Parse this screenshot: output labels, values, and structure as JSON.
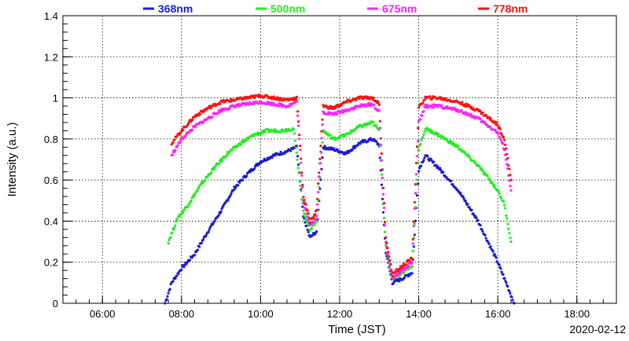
{
  "chart_data": {
    "type": "scatter",
    "xlabel": "Time (JST)",
    "ylabel": "Intensity (a.u.)",
    "date_label": "2020-02-12",
    "x_ticks": [
      "06:00",
      "08:00",
      "10:00",
      "12:00",
      "14:00",
      "16:00",
      "18:00"
    ],
    "y_ticks": [
      "0",
      "0.2",
      "0.4",
      "0.6",
      "0.8",
      "1",
      "1.2",
      "1.4"
    ],
    "xlim": [
      "05:00",
      "19:00"
    ],
    "ylim": [
      0,
      1.4
    ],
    "grid": true,
    "legend_position": "top",
    "series": [
      {
        "name": "368nm",
        "color": "#1a1ad6",
        "points": [
          [
            "07:35",
            0.0
          ],
          [
            "07:45",
            0.1
          ],
          [
            "08:00",
            0.17
          ],
          [
            "08:20",
            0.24
          ],
          [
            "08:40",
            0.35
          ],
          [
            "09:00",
            0.45
          ],
          [
            "09:20",
            0.56
          ],
          [
            "09:40",
            0.63
          ],
          [
            "10:00",
            0.69
          ],
          [
            "10:20",
            0.72
          ],
          [
            "10:40",
            0.74
          ],
          [
            "10:55",
            0.76
          ],
          [
            "11:05",
            0.42
          ],
          [
            "11:15",
            0.32
          ],
          [
            "11:25",
            0.35
          ],
          [
            "11:35",
            0.76
          ],
          [
            "11:50",
            0.75
          ],
          [
            "12:10",
            0.73
          ],
          [
            "12:30",
            0.78
          ],
          [
            "12:50",
            0.8
          ],
          [
            "13:00",
            0.77
          ],
          [
            "13:10",
            0.25
          ],
          [
            "13:20",
            0.1
          ],
          [
            "13:35",
            0.12
          ],
          [
            "13:50",
            0.15
          ],
          [
            "14:00",
            0.65
          ],
          [
            "14:10",
            0.72
          ],
          [
            "14:30",
            0.66
          ],
          [
            "15:00",
            0.55
          ],
          [
            "15:30",
            0.4
          ],
          [
            "16:00",
            0.2
          ],
          [
            "16:15",
            0.08
          ],
          [
            "16:25",
            0.0
          ]
        ]
      },
      {
        "name": "500nm",
        "color": "#22ee22",
        "points": [
          [
            "07:40",
            0.3
          ],
          [
            "07:55",
            0.42
          ],
          [
            "08:10",
            0.48
          ],
          [
            "08:30",
            0.58
          ],
          [
            "08:50",
            0.66
          ],
          [
            "09:10",
            0.73
          ],
          [
            "09:30",
            0.78
          ],
          [
            "09:50",
            0.82
          ],
          [
            "10:10",
            0.84
          ],
          [
            "10:30",
            0.84
          ],
          [
            "10:50",
            0.85
          ],
          [
            "11:05",
            0.45
          ],
          [
            "11:15",
            0.36
          ],
          [
            "11:25",
            0.4
          ],
          [
            "11:35",
            0.84
          ],
          [
            "11:50",
            0.8
          ],
          [
            "12:10",
            0.82
          ],
          [
            "12:30",
            0.86
          ],
          [
            "12:50",
            0.88
          ],
          [
            "13:00",
            0.84
          ],
          [
            "13:10",
            0.28
          ],
          [
            "13:20",
            0.12
          ],
          [
            "13:35",
            0.15
          ],
          [
            "13:50",
            0.18
          ],
          [
            "14:00",
            0.75
          ],
          [
            "14:10",
            0.85
          ],
          [
            "14:30",
            0.82
          ],
          [
            "15:00",
            0.76
          ],
          [
            "15:30",
            0.67
          ],
          [
            "16:00",
            0.55
          ],
          [
            "16:10",
            0.48
          ],
          [
            "16:20",
            0.3
          ]
        ]
      },
      {
        "name": "675nm",
        "color": "#ff22ff",
        "points": [
          [
            "07:45",
            0.72
          ],
          [
            "08:00",
            0.8
          ],
          [
            "08:20",
            0.86
          ],
          [
            "08:40",
            0.9
          ],
          [
            "09:00",
            0.94
          ],
          [
            "09:20",
            0.96
          ],
          [
            "09:40",
            0.97
          ],
          [
            "10:00",
            0.98
          ],
          [
            "10:20",
            0.97
          ],
          [
            "10:40",
            0.96
          ],
          [
            "10:55",
            0.98
          ],
          [
            "11:05",
            0.5
          ],
          [
            "11:15",
            0.38
          ],
          [
            "11:25",
            0.42
          ],
          [
            "11:35",
            0.93
          ],
          [
            "11:50",
            0.92
          ],
          [
            "12:10",
            0.94
          ],
          [
            "12:30",
            0.96
          ],
          [
            "12:50",
            0.97
          ],
          [
            "13:00",
            0.93
          ],
          [
            "13:10",
            0.3
          ],
          [
            "13:20",
            0.12
          ],
          [
            "13:35",
            0.16
          ],
          [
            "13:50",
            0.2
          ],
          [
            "14:00",
            0.88
          ],
          [
            "14:10",
            0.96
          ],
          [
            "14:30",
            0.96
          ],
          [
            "15:00",
            0.94
          ],
          [
            "15:30",
            0.9
          ],
          [
            "16:00",
            0.83
          ],
          [
            "16:10",
            0.75
          ],
          [
            "16:20",
            0.55
          ]
        ]
      },
      {
        "name": "778nm",
        "color": "#ff1111",
        "points": [
          [
            "07:45",
            0.78
          ],
          [
            "08:00",
            0.84
          ],
          [
            "08:20",
            0.91
          ],
          [
            "08:40",
            0.95
          ],
          [
            "09:00",
            0.98
          ],
          [
            "09:20",
            0.99
          ],
          [
            "09:40",
            1.0
          ],
          [
            "10:00",
            1.01
          ],
          [
            "10:20",
            1.0
          ],
          [
            "10:40",
            0.99
          ],
          [
            "10:55",
            1.0
          ],
          [
            "11:05",
            0.52
          ],
          [
            "11:15",
            0.4
          ],
          [
            "11:25",
            0.45
          ],
          [
            "11:35",
            0.96
          ],
          [
            "11:50",
            0.95
          ],
          [
            "12:10",
            0.98
          ],
          [
            "12:30",
            1.0
          ],
          [
            "12:50",
            1.0
          ],
          [
            "13:00",
            0.97
          ],
          [
            "13:10",
            0.32
          ],
          [
            "13:20",
            0.14
          ],
          [
            "13:35",
            0.18
          ],
          [
            "13:50",
            0.22
          ],
          [
            "14:00",
            0.95
          ],
          [
            "14:10",
            1.0
          ],
          [
            "14:30",
            1.0
          ],
          [
            "15:00",
            0.98
          ],
          [
            "15:30",
            0.94
          ],
          [
            "16:00",
            0.87
          ],
          [
            "16:10",
            0.8
          ],
          [
            "16:20",
            0.6
          ]
        ]
      }
    ]
  }
}
